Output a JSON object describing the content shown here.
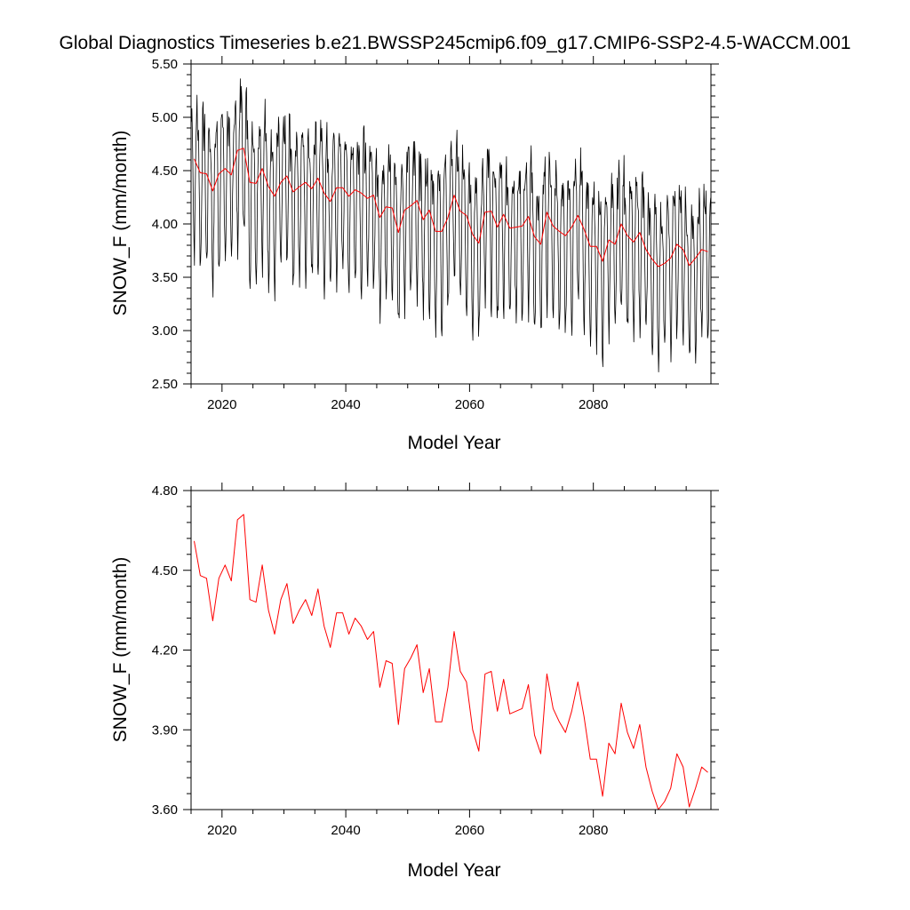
{
  "figure": {
    "title": "Global Diagnostics Timeseries b.e21.BWSSP245cmip6.f09_g17.CMIP6-SSP2-4.5-WACCM.001"
  },
  "chart_data": [
    {
      "type": "line",
      "xlabel": "Model Year",
      "ylabel": "SNOW_F (mm/month)",
      "xlim": [
        2015,
        2099
      ],
      "ylim": [
        2.5,
        5.5
      ],
      "x_ticks": [
        2020,
        2040,
        2060,
        2080
      ],
      "x_tick_labels": [
        "2020",
        "2040",
        "2060",
        "2080"
      ],
      "y_ticks": [
        2.5,
        3.0,
        3.5,
        4.0,
        4.5,
        5.0,
        5.5
      ],
      "y_tick_labels": [
        "2.50",
        "3.00",
        "3.50",
        "4.00",
        "4.50",
        "5.00",
        "5.50"
      ],
      "grid": false,
      "series": [
        {
          "kind": "monthly",
          "color": "#000000",
          "x_start": 2015.04,
          "x_step": 0.08333,
          "note_pattern": "monthly values oscillating seasonally around the annual mean",
          "seasonal_offsets": [
            0.35,
            0.45,
            0.4,
            0.05,
            -0.45,
            -0.75,
            -0.85,
            -0.65,
            -0.2,
            0.2,
            0.45,
            0.5
          ],
          "values": []
        },
        {
          "kind": "annual",
          "color": "#ff0000",
          "x": [
            2015.5,
            2016.5,
            2017.5,
            2018.5,
            2019.5,
            2020.5,
            2021.5,
            2022.5,
            2023.5,
            2024.5,
            2025.5,
            2026.5,
            2027.5,
            2028.5,
            2029.5,
            2030.5,
            2031.5,
            2032.5,
            2033.5,
            2034.5,
            2035.5,
            2036.5,
            2037.5,
            2038.5,
            2039.5,
            2040.5,
            2041.5,
            2042.5,
            2043.5,
            2044.5,
            2045.5,
            2046.5,
            2047.5,
            2048.5,
            2049.5,
            2050.5,
            2051.5,
            2052.5,
            2053.5,
            2054.5,
            2055.5,
            2056.5,
            2057.5,
            2058.5,
            2059.5,
            2060.5,
            2061.5,
            2062.5,
            2063.5,
            2064.5,
            2065.5,
            2066.5,
            2067.5,
            2068.5,
            2069.5,
            2070.5,
            2071.5,
            2072.5,
            2073.5,
            2074.5,
            2075.5,
            2076.5,
            2077.5,
            2078.5,
            2079.5,
            2080.5,
            2081.5,
            2082.5,
            2083.5,
            2084.5,
            2085.5,
            2086.5,
            2087.5,
            2088.5,
            2089.5,
            2090.5,
            2091.5,
            2092.5,
            2093.5,
            2094.5,
            2095.5,
            2096.5,
            2097.5,
            2098.5
          ],
          "values": [
            4.61,
            4.48,
            4.47,
            4.31,
            4.47,
            4.52,
            4.46,
            4.69,
            4.71,
            4.39,
            4.38,
            4.52,
            4.35,
            4.26,
            4.39,
            4.45,
            4.3,
            4.35,
            4.39,
            4.33,
            4.43,
            4.29,
            4.21,
            4.34,
            4.34,
            4.26,
            4.32,
            4.29,
            4.24,
            4.27,
            4.06,
            4.16,
            4.15,
            3.92,
            4.13,
            4.17,
            4.22,
            4.04,
            4.13,
            3.93,
            3.93,
            4.06,
            4.27,
            4.12,
            4.08,
            3.9,
            3.82,
            4.11,
            4.12,
            3.97,
            4.09,
            3.96,
            3.97,
            3.98,
            4.07,
            3.88,
            3.81,
            4.11,
            3.98,
            3.93,
            3.89,
            3.97,
            4.08,
            3.95,
            3.79,
            3.79,
            3.65,
            3.85,
            3.81,
            4.0,
            3.89,
            3.83,
            3.92,
            3.76,
            3.67,
            3.6,
            3.63,
            3.68,
            3.81,
            3.76,
            3.61,
            3.68,
            3.76,
            3.74
          ]
        }
      ]
    },
    {
      "type": "line",
      "xlabel": "Model Year",
      "ylabel": "SNOW_F (mm/month)",
      "xlim": [
        2015,
        2099
      ],
      "ylim": [
        3.6,
        4.8
      ],
      "x_ticks": [
        2020,
        2040,
        2060,
        2080
      ],
      "x_tick_labels": [
        "2020",
        "2040",
        "2060",
        "2080"
      ],
      "y_ticks": [
        3.6,
        3.9,
        4.2,
        4.5,
        4.8
      ],
      "y_tick_labels": [
        "3.60",
        "3.90",
        "4.20",
        "4.50",
        "4.80"
      ],
      "grid": false,
      "series": [
        {
          "kind": "annual",
          "color": "#ff0000",
          "x": [
            2015.5,
            2016.5,
            2017.5,
            2018.5,
            2019.5,
            2020.5,
            2021.5,
            2022.5,
            2023.5,
            2024.5,
            2025.5,
            2026.5,
            2027.5,
            2028.5,
            2029.5,
            2030.5,
            2031.5,
            2032.5,
            2033.5,
            2034.5,
            2035.5,
            2036.5,
            2037.5,
            2038.5,
            2039.5,
            2040.5,
            2041.5,
            2042.5,
            2043.5,
            2044.5,
            2045.5,
            2046.5,
            2047.5,
            2048.5,
            2049.5,
            2050.5,
            2051.5,
            2052.5,
            2053.5,
            2054.5,
            2055.5,
            2056.5,
            2057.5,
            2058.5,
            2059.5,
            2060.5,
            2061.5,
            2062.5,
            2063.5,
            2064.5,
            2065.5,
            2066.5,
            2067.5,
            2068.5,
            2069.5,
            2070.5,
            2071.5,
            2072.5,
            2073.5,
            2074.5,
            2075.5,
            2076.5,
            2077.5,
            2078.5,
            2079.5,
            2080.5,
            2081.5,
            2082.5,
            2083.5,
            2084.5,
            2085.5,
            2086.5,
            2087.5,
            2088.5,
            2089.5,
            2090.5,
            2091.5,
            2092.5,
            2093.5,
            2094.5,
            2095.5,
            2096.5,
            2097.5,
            2098.5
          ],
          "values": [
            4.61,
            4.48,
            4.47,
            4.31,
            4.47,
            4.52,
            4.46,
            4.69,
            4.71,
            4.39,
            4.38,
            4.52,
            4.35,
            4.26,
            4.39,
            4.45,
            4.3,
            4.35,
            4.39,
            4.33,
            4.43,
            4.29,
            4.21,
            4.34,
            4.34,
            4.26,
            4.32,
            4.29,
            4.24,
            4.27,
            4.06,
            4.16,
            4.15,
            3.92,
            4.13,
            4.17,
            4.22,
            4.04,
            4.13,
            3.93,
            3.93,
            4.06,
            4.27,
            4.12,
            4.08,
            3.9,
            3.82,
            4.11,
            4.12,
            3.97,
            4.09,
            3.96,
            3.97,
            3.98,
            4.07,
            3.88,
            3.81,
            4.11,
            3.98,
            3.93,
            3.89,
            3.97,
            4.08,
            3.95,
            3.79,
            3.79,
            3.65,
            3.85,
            3.81,
            4.0,
            3.89,
            3.83,
            3.92,
            3.76,
            3.67,
            3.6,
            3.63,
            3.68,
            3.81,
            3.76,
            3.61,
            3.68,
            3.76,
            3.74
          ]
        }
      ]
    }
  ]
}
